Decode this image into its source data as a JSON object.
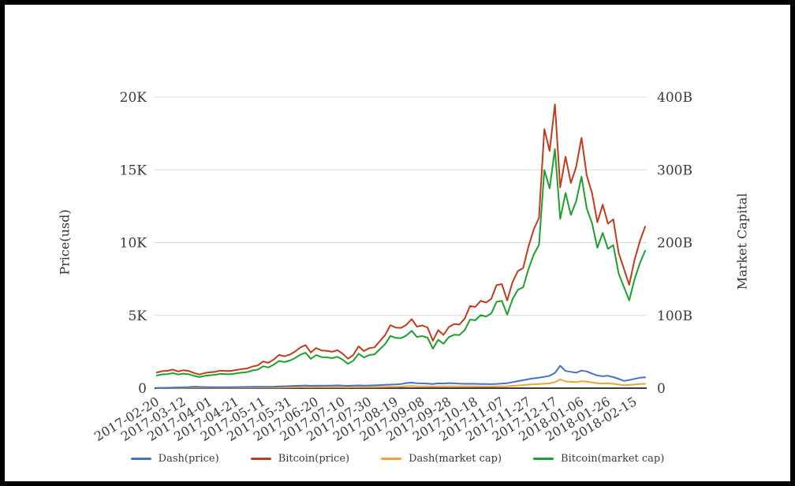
{
  "chart_data": {
    "type": "line",
    "title": "",
    "grid": true,
    "legend_position": "bottom",
    "y_left": {
      "label": "Price(usd)",
      "ticks": [
        "0",
        "5K",
        "10K",
        "15K",
        "20K"
      ],
      "max": 20000
    },
    "y_right": {
      "label": "Market Capital",
      "ticks": [
        "0",
        "100B",
        "200B",
        "300B",
        "400B"
      ],
      "max": 400
    },
    "x_tick_labels": [
      "2017-02-20",
      "2017-03-12",
      "2017-04-01",
      "2017-04-21",
      "2017-05-11",
      "2017-05-31",
      "2017-06-20",
      "2017-07-10",
      "2017-07-30",
      "2017-08-19",
      "2017-09-08",
      "2017-09-28",
      "2017-10-18",
      "2017-11-07",
      "2017-11-27",
      "2017-12-17",
      "2018-01-06",
      "2018-01-26",
      "2018-02-15"
    ],
    "dates": [
      "2017-02-20",
      "2017-02-24",
      "2017-02-28",
      "2017-03-04",
      "2017-03-08",
      "2017-03-12",
      "2017-03-16",
      "2017-03-20",
      "2017-03-24",
      "2017-03-28",
      "2017-04-01",
      "2017-04-05",
      "2017-04-09",
      "2017-04-13",
      "2017-04-17",
      "2017-04-21",
      "2017-04-25",
      "2017-04-29",
      "2017-05-03",
      "2017-05-07",
      "2017-05-11",
      "2017-05-15",
      "2017-05-19",
      "2017-05-23",
      "2017-05-27",
      "2017-05-31",
      "2017-06-04",
      "2017-06-08",
      "2017-06-12",
      "2017-06-16",
      "2017-06-20",
      "2017-06-24",
      "2017-06-28",
      "2017-07-02",
      "2017-07-06",
      "2017-07-10",
      "2017-07-14",
      "2017-07-18",
      "2017-07-22",
      "2017-07-26",
      "2017-07-30",
      "2017-08-03",
      "2017-08-07",
      "2017-08-11",
      "2017-08-15",
      "2017-08-19",
      "2017-08-23",
      "2017-08-27",
      "2017-08-31",
      "2017-09-04",
      "2017-09-08",
      "2017-09-12",
      "2017-09-16",
      "2017-09-20",
      "2017-09-24",
      "2017-09-28",
      "2017-10-02",
      "2017-10-06",
      "2017-10-10",
      "2017-10-14",
      "2017-10-18",
      "2017-10-22",
      "2017-10-26",
      "2017-10-30",
      "2017-11-03",
      "2017-11-07",
      "2017-11-11",
      "2017-11-15",
      "2017-11-19",
      "2017-11-23",
      "2017-11-27",
      "2017-12-01",
      "2017-12-05",
      "2017-12-09",
      "2017-12-13",
      "2017-12-17",
      "2017-12-21",
      "2017-12-25",
      "2017-12-29",
      "2018-01-02",
      "2018-01-06",
      "2018-01-10",
      "2018-01-14",
      "2018-01-18",
      "2018-01-22",
      "2018-01-26",
      "2018-01-30",
      "2018-02-03",
      "2018-02-07",
      "2018-02-11",
      "2018-02-15",
      "2018-02-19",
      "2018-02-23"
    ],
    "series": [
      {
        "name": "Dash(price)",
        "axis": "left",
        "color": "#4472c4",
        "values": [
          20,
          23,
          27,
          40,
          48,
          58,
          78,
          105,
          88,
          75,
          70,
          72,
          70,
          68,
          72,
          75,
          80,
          85,
          92,
          95,
          100,
          95,
          105,
          120,
          130,
          140,
          155,
          170,
          185,
          160,
          180,
          170,
          175,
          180,
          195,
          175,
          160,
          175,
          190,
          180,
          185,
          195,
          210,
          225,
          245,
          255,
          280,
          350,
          380,
          340,
          330,
          310,
          280,
          330,
          320,
          345,
          330,
          310,
          300,
          305,
          300,
          285,
          280,
          275,
          290,
          320,
          340,
          420,
          480,
          550,
          620,
          680,
          720,
          780,
          850,
          1050,
          1540,
          1180,
          1120,
          1060,
          1210,
          1150,
          1000,
          870,
          820,
          850,
          760,
          640,
          500,
          560,
          640,
          720,
          750
        ]
      },
      {
        "name": "Bitcoin(price)",
        "axis": "left",
        "color": "#c43a1c",
        "values": [
          1080,
          1170,
          1190,
          1280,
          1150,
          1230,
          1180,
          1040,
          940,
          1040,
          1090,
          1130,
          1210,
          1180,
          1190,
          1250,
          1310,
          1350,
          1490,
          1560,
          1830,
          1740,
          1970,
          2280,
          2190,
          2300,
          2510,
          2790,
          2960,
          2450,
          2760,
          2590,
          2570,
          2500,
          2610,
          2370,
          2020,
          2280,
          2870,
          2550,
          2750,
          2810,
          3230,
          3650,
          4330,
          4160,
          4140,
          4350,
          4740,
          4230,
          4310,
          4170,
          3260,
          3990,
          3660,
          4200,
          4400,
          4370,
          4780,
          5640,
          5580,
          6000,
          5880,
          6130,
          7080,
          7150,
          6020,
          7280,
          8040,
          8250,
          9720,
          10900,
          11700,
          17800,
          16300,
          19500,
          13800,
          15900,
          14100,
          15200,
          17200,
          14600,
          13400,
          11400,
          12600,
          11300,
          11600,
          9300,
          8200,
          7100,
          8800,
          10100,
          11100
        ]
      },
      {
        "name": "Dash(market cap)",
        "axis": "right",
        "color": "#f2a132",
        "values": [
          0.15,
          0.17,
          0.2,
          0.3,
          0.36,
          0.43,
          0.58,
          0.78,
          0.65,
          0.56,
          0.52,
          0.54,
          0.52,
          0.51,
          0.54,
          0.56,
          0.6,
          0.64,
          0.69,
          0.71,
          0.75,
          0.71,
          0.79,
          0.9,
          0.98,
          1.05,
          1.17,
          1.28,
          1.4,
          1.21,
          1.36,
          1.29,
          1.32,
          1.36,
          1.48,
          1.33,
          1.21,
          1.33,
          1.44,
          1.37,
          1.41,
          1.48,
          1.6,
          1.71,
          1.87,
          1.94,
          2.14,
          2.67,
          2.9,
          2.6,
          2.53,
          2.38,
          2.15,
          2.53,
          2.46,
          2.65,
          2.54,
          2.39,
          2.31,
          2.35,
          2.32,
          2.2,
          2.17,
          2.13,
          2.25,
          2.48,
          2.64,
          3.26,
          3.73,
          4.28,
          4.83,
          5.3,
          5.62,
          6.09,
          6.64,
          8.21,
          12.05,
          9.24,
          8.77,
          8.31,
          9.49,
          9.02,
          7.85,
          6.83,
          6.44,
          6.68,
          5.98,
          5.03,
          3.94,
          4.41,
          5.04,
          5.67,
          5.91
        ]
      },
      {
        "name": "Bitcoin(market cap)",
        "axis": "right",
        "color": "#1ca12e",
        "values": [
          17.5,
          19.0,
          19.3,
          20.8,
          18.7,
          20.0,
          19.2,
          16.9,
          15.3,
          16.9,
          17.8,
          18.4,
          19.7,
          19.2,
          19.4,
          20.4,
          21.4,
          22.1,
          24.4,
          25.5,
          30.0,
          28.5,
          32.3,
          37.4,
          35.9,
          37.8,
          41.2,
          45.8,
          48.7,
          40.3,
          45.4,
          42.7,
          42.4,
          41.2,
          43.1,
          39.1,
          33.4,
          37.7,
          47.4,
          42.2,
          45.5,
          46.5,
          53.5,
          60.5,
          71.8,
          69.0,
          68.7,
          72.3,
          78.8,
          70.3,
          71.7,
          69.4,
          54.3,
          66.5,
          61.0,
          70.1,
          73.4,
          73.0,
          79.8,
          94.2,
          93.3,
          100.4,
          98.4,
          102.7,
          118.7,
          119.9,
          101.0,
          122.2,
          135.0,
          138.6,
          163.4,
          183.3,
          196.9,
          299.6,
          274.5,
          328.6,
          232.7,
          268.2,
          238.0,
          256.6,
          290.5,
          246.7,
          226.6,
          192.9,
          213.3,
          191.4,
          196.5,
          157.6,
          139.1,
          120.5,
          149.4,
          171.6,
          188.7
        ]
      }
    ],
    "colors": {
      "gridline": "#d9d9d9",
      "axis_line": "#3c3c3c",
      "tick_text": "#3a3a3a"
    }
  }
}
